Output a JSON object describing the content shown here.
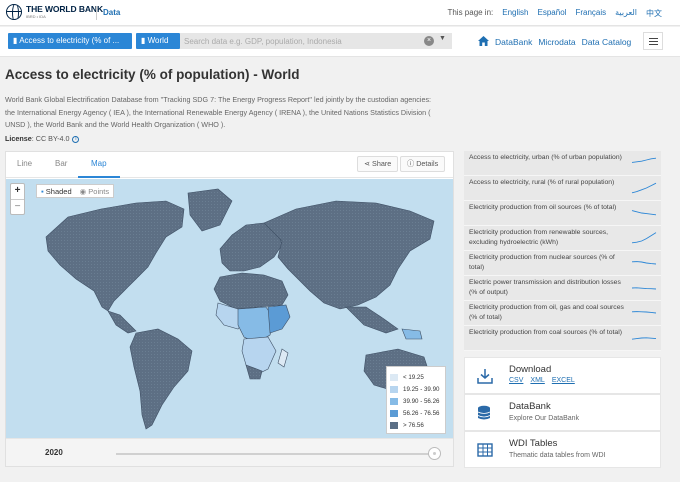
{
  "header": {
    "logo_name": "THE WORLD BANK",
    "logo_sub": "IBRD • IDA",
    "data_link": "Data",
    "page_in_label": "This page in:",
    "languages": [
      "English",
      "Español",
      "Français",
      "العربية",
      "中文"
    ]
  },
  "search": {
    "indicator_pill": "Access to electricity (% of ...",
    "country_pill": "World",
    "placeholder": "Search data e.g. GDP, population, Indonesia",
    "nav_links": [
      "DataBank",
      "Microdata",
      "Data Catalog"
    ]
  },
  "page": {
    "title": "Access to electricity (% of population) - World",
    "description": "World Bank Global Electrification Database from \"Tracking SDG 7: The Energy Progress Report\" led jointly by the custodian agencies: the International Energy Agency ( IEA ), the International Renewable Energy Agency ( IRENA ), the United Nations Statistics Division ( UNSD ), the World Bank and the World Health Organization ( WHO ).",
    "license_label": "License",
    "license_value": ": CC BY-4.0"
  },
  "chart_panel": {
    "tabs": [
      "Line",
      "Bar",
      "Map"
    ],
    "active_tab": "Map",
    "share_label": "Share",
    "details_label": "Details",
    "mode_shaded": "Shaded",
    "mode_points": "Points",
    "zoom_in": "+",
    "zoom_out": "−",
    "year": "2020"
  },
  "chart_data": {
    "type": "choropleth-map",
    "legend": [
      {
        "label": "< 19.25",
        "color": "#dce9f4"
      },
      {
        "label": "19.25 - 39.90",
        "color": "#b7d5ef"
      },
      {
        "label": "39.90 - 56.26",
        "color": "#86bbe6"
      },
      {
        "label": "56.26 - 76.56",
        "color": "#5b9bd5"
      },
      {
        "label": "> 76.56",
        "color": "#5b6f86"
      }
    ],
    "ocean_color": "#c2deef"
  },
  "related": [
    {
      "label": "Access to electricity, urban (% of urban population)",
      "trend": [
        0.55,
        0.6,
        0.65,
        0.75,
        0.85,
        0.9
      ]
    },
    {
      "label": "Access to electricity, rural (% of rural population)",
      "trend": [
        0.1,
        0.2,
        0.35,
        0.5,
        0.7,
        0.9
      ]
    },
    {
      "label": "Electricity production from oil sources (% of total)",
      "trend": [
        0.7,
        0.6,
        0.5,
        0.45,
        0.4,
        0.35
      ]
    },
    {
      "label": "Electricity production from renewable sources, excluding hydroelectric (kWh)",
      "trend": [
        0.1,
        0.15,
        0.25,
        0.45,
        0.7,
        0.95
      ]
    },
    {
      "label": "Electricity production from nuclear sources (% of total)",
      "trend": [
        0.6,
        0.62,
        0.58,
        0.5,
        0.45,
        0.42
      ]
    },
    {
      "label": "Electric power transmission and distribution losses (% of output)",
      "trend": [
        0.5,
        0.52,
        0.48,
        0.45,
        0.44,
        0.42
      ]
    },
    {
      "label": "Electricity production from oil, gas and coal sources (% of total)",
      "trend": [
        0.6,
        0.62,
        0.6,
        0.58,
        0.55,
        0.5
      ]
    },
    {
      "label": "Electricity production from coal sources (% of total)",
      "trend": [
        0.4,
        0.45,
        0.5,
        0.52,
        0.48,
        0.45
      ]
    }
  ],
  "resources": {
    "download": {
      "title": "Download",
      "links": [
        "CSV",
        "XML",
        "EXCEL"
      ]
    },
    "databank": {
      "title": "DataBank",
      "subtitle": "Explore Our DataBank"
    },
    "wdi": {
      "title": "WDI Tables",
      "subtitle": "Thematic data tables from WDI"
    }
  }
}
